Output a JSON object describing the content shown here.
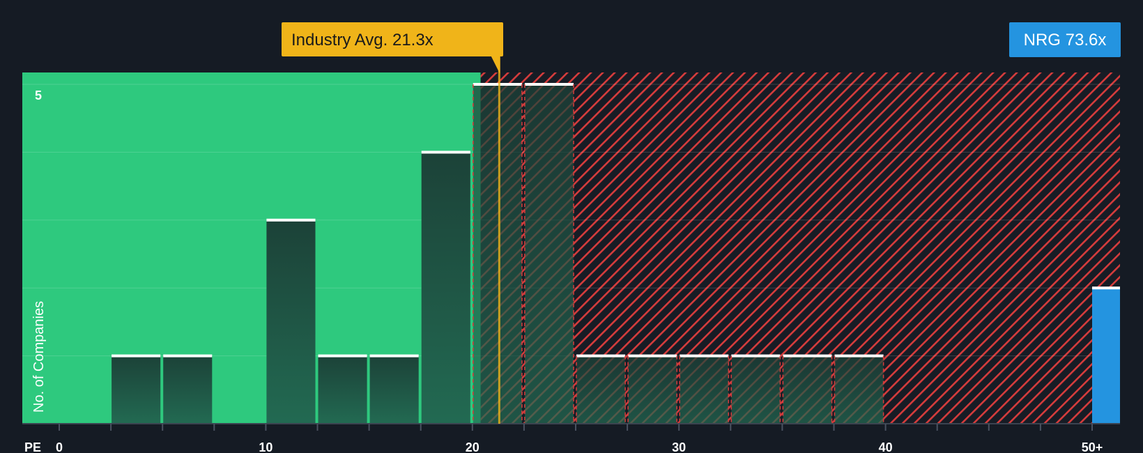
{
  "chart_data": {
    "type": "bar",
    "x_axis_label": "PE",
    "y_axis_label": "No. of Companies",
    "x_ticks": [
      "0",
      "10",
      "20",
      "30",
      "40",
      "50+"
    ],
    "y_ticks": [
      "5"
    ],
    "ylim": [
      0,
      5
    ],
    "xlim": [
      -1.75,
      51.5
    ],
    "bins": [
      {
        "x0": 2.5,
        "x1": 5,
        "count": 1
      },
      {
        "x0": 5,
        "x1": 7.5,
        "count": 1
      },
      {
        "x0": 10,
        "x1": 12.5,
        "count": 3
      },
      {
        "x0": 12.5,
        "x1": 15,
        "count": 1
      },
      {
        "x0": 15,
        "x1": 17.5,
        "count": 1
      },
      {
        "x0": 17.5,
        "x1": 20,
        "count": 4
      },
      {
        "x0": 20,
        "x1": 22.5,
        "count": 5
      },
      {
        "x0": 22.5,
        "x1": 25,
        "count": 5
      },
      {
        "x0": 25,
        "x1": 27.5,
        "count": 1
      },
      {
        "x0": 27.5,
        "x1": 30,
        "count": 1
      },
      {
        "x0": 30,
        "x1": 32.5,
        "count": 1
      },
      {
        "x0": 32.5,
        "x1": 35,
        "count": 1
      },
      {
        "x0": 35,
        "x1": 37.5,
        "count": 1
      },
      {
        "x0": 37.5,
        "x1": 40,
        "count": 1
      }
    ],
    "subject_bar": {
      "label": "NRG",
      "x0": 50,
      "x1": 51.5,
      "count": 2
    },
    "industry_average": {
      "value": 21.3,
      "label": "Industry Avg. 21.3x"
    },
    "subject": {
      "value": 73.6,
      "label": "NRG 73.6x"
    },
    "fair_zone_upper": 20.4,
    "colors": {
      "background": "#151b24",
      "fair_zone": "#2ec97e",
      "overvalued_zone": "#d63c3c",
      "bar": "#1f4a3f",
      "bar_top": "#ffffff",
      "subject_bar": "#2494e0",
      "industry_marker": "#f0b419"
    }
  }
}
